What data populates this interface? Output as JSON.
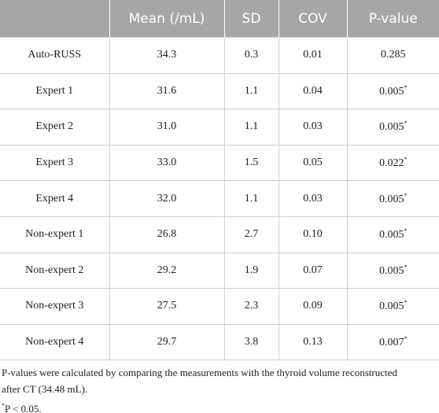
{
  "table": {
    "columns": [
      "",
      "Mean (/mL)",
      "SD",
      "COV",
      "P-value"
    ],
    "rows": [
      [
        "Auto-RUSS",
        "34.3",
        "0.3",
        "0.01",
        {
          "text": "0.285"
        }
      ],
      [
        "Expert 1",
        "31.6",
        "1.1",
        "0.04",
        {
          "text": "0.005",
          "note": "*"
        }
      ],
      [
        "Expert 2",
        "31.0",
        "1.1",
        "0.03",
        {
          "text": "0.005",
          "note": "*"
        }
      ],
      [
        "Expert 3",
        "33.0",
        "1.5",
        "0.05",
        {
          "text": "0.022",
          "note": "*"
        }
      ],
      [
        "Expert 4",
        "32.0",
        "1.1",
        "0.03",
        {
          "text": "0.005",
          "note": "*"
        }
      ],
      [
        "Non-expert 1",
        "26.8",
        "2.7",
        "0.10",
        {
          "text": "0.005",
          "note": "*"
        }
      ],
      [
        "Non-expert 2",
        "29.2",
        "1.9",
        "0.07",
        {
          "text": "0.005",
          "note": "*"
        }
      ],
      [
        "Non-expert 3",
        "27.5",
        "2.3",
        "0.09",
        {
          "text": "0.005",
          "note": "*"
        }
      ],
      [
        "Non-expert 4",
        "29.7",
        "3.8",
        "0.13",
        {
          "text": "0.007",
          "note": "*"
        }
      ]
    ]
  },
  "footnotes": [
    "P-values were calculated by comparing the measurements with the thyroid volume reconstructed after CT (34.48 mL).",
    {
      "mark": "*",
      "text": "P < 0.05."
    }
  ]
}
